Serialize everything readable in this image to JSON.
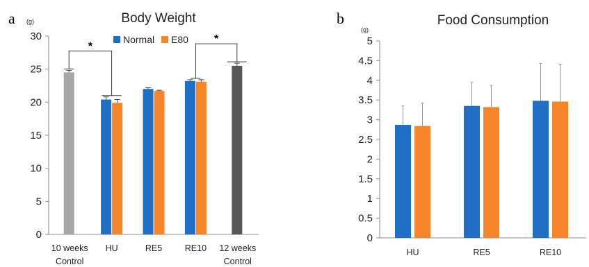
{
  "colors": {
    "normal": "#1F6FC6",
    "e80": "#F7862A",
    "control10": "#A6A6A6",
    "control12": "#575757",
    "axis": "#8C8C8C",
    "text": "#222222"
  },
  "chart_data": [
    {
      "panel_label": "a",
      "type": "bar",
      "title": "Body Weight",
      "ylabel": "(g)",
      "ylim": [
        0,
        30
      ],
      "yticks": [
        "0",
        "5",
        "10",
        "15",
        "20",
        "25",
        "30"
      ],
      "categories": [
        {
          "line1": "10 weeks",
          "line2": "Control"
        },
        {
          "line1": "HU",
          "line2": ""
        },
        {
          "line1": "RE5",
          "line2": ""
        },
        {
          "line1": "RE10",
          "line2": ""
        },
        {
          "line1": "12 weeks",
          "line2": "Control"
        }
      ],
      "legend": {
        "position": "top",
        "entries": [
          "Normal",
          "E80"
        ]
      },
      "bars": [
        {
          "category": 0,
          "series": "control10",
          "value": 24.5,
          "err": 0.3
        },
        {
          "category": 1,
          "series": "Normal",
          "value": 20.4,
          "err": 0.4
        },
        {
          "category": 1,
          "series": "E80",
          "value": 19.9,
          "err": 0.5
        },
        {
          "category": 2,
          "series": "Normal",
          "value": 22.0,
          "err": 0.2
        },
        {
          "category": 2,
          "series": "E80",
          "value": 21.7,
          "err": 0.1
        },
        {
          "category": 3,
          "series": "Normal",
          "value": 23.2,
          "err": 0.2
        },
        {
          "category": 3,
          "series": "E80",
          "value": 23.1,
          "err": 0.3
        },
        {
          "category": 4,
          "series": "control12",
          "value": 25.5,
          "err": 0.4
        }
      ],
      "significance": [
        {
          "from": 0,
          "to": 1,
          "label": "*"
        },
        {
          "from": 3,
          "to": 4,
          "label": "*"
        }
      ]
    },
    {
      "panel_label": "b",
      "type": "bar",
      "title": "Food Consumption",
      "ylabel": "(g)",
      "ylim": [
        0,
        5
      ],
      "yticks": [
        "0",
        "0.5",
        "1",
        "1.5",
        "2",
        "2.5",
        "3",
        "3.5",
        "4",
        "4.5",
        "5"
      ],
      "categories": [
        "HU",
        "RE5",
        "RE10"
      ],
      "series": [
        {
          "name": "Normal",
          "values": [
            2.87,
            3.35,
            3.48
          ],
          "err": [
            0.48,
            0.6,
            0.95
          ]
        },
        {
          "name": "E80",
          "values": [
            2.84,
            3.32,
            3.46
          ],
          "err": [
            0.58,
            0.55,
            0.95
          ]
        }
      ]
    }
  ]
}
